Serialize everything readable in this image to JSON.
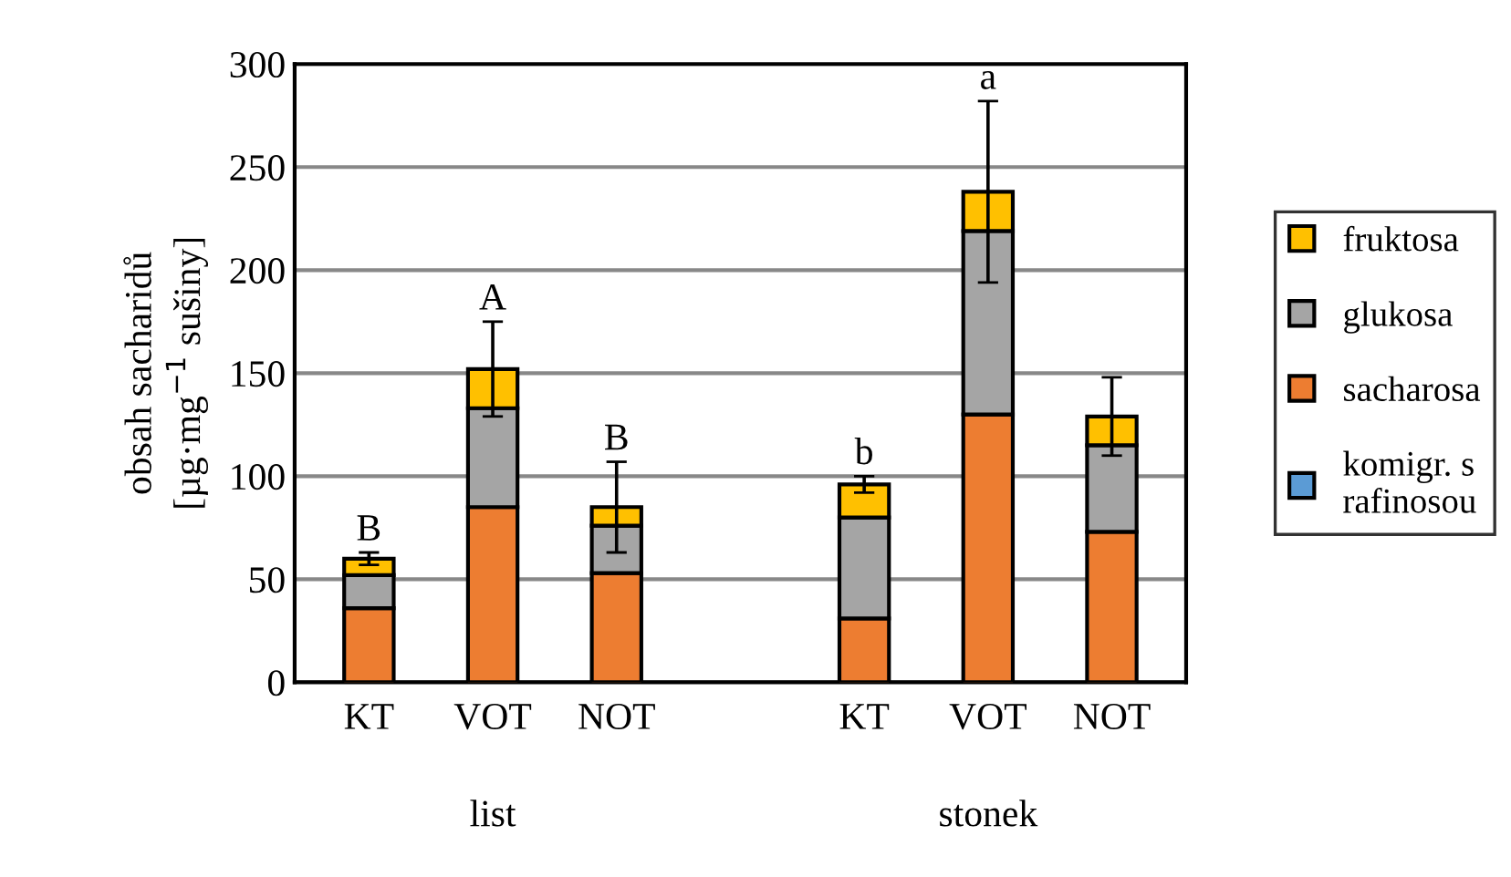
{
  "chart_data": {
    "type": "bar",
    "stacked": true,
    "ylabel": "obsah sacharidů\n[µg·mg$^{−1}$ sušiny]",
    "categories": [
      "KT",
      "VOT",
      "NOT",
      null,
      "KT",
      "VOT",
      "NOT"
    ],
    "series": [
      {
        "name": "komigr. s\nrafinosou",
        "color": "#5b9bd5",
        "values": [
          null,
          null,
          null,
          null,
          null,
          null,
          null
        ]
      },
      {
        "name": "sacharosa",
        "color": "#ed7d31",
        "values": [
          36,
          85,
          53,
          null,
          31,
          130,
          73
        ]
      },
      {
        "name": "glukosa",
        "color": "#a5a5a5",
        "values": [
          16,
          48,
          23,
          null,
          49,
          89,
          42
        ]
      },
      {
        "name": "fruktosa",
        "color": "#ffc000",
        "values": [
          8,
          19,
          9,
          null,
          16,
          19,
          14
        ],
        "errors": [
          3,
          23,
          22,
          null,
          4,
          44,
          19
        ],
        "value_labels": [
          "B",
          "A",
          "B",
          null,
          "b",
          "a",
          null
        ]
      }
    ],
    "ylim": [
      0,
      300
    ],
    "yticks": [
      0,
      50,
      100,
      150,
      200,
      250,
      300
    ],
    "grid": "y",
    "legend": "right",
    "annotations": [
      "list",
      "stonek"
    ]
  }
}
